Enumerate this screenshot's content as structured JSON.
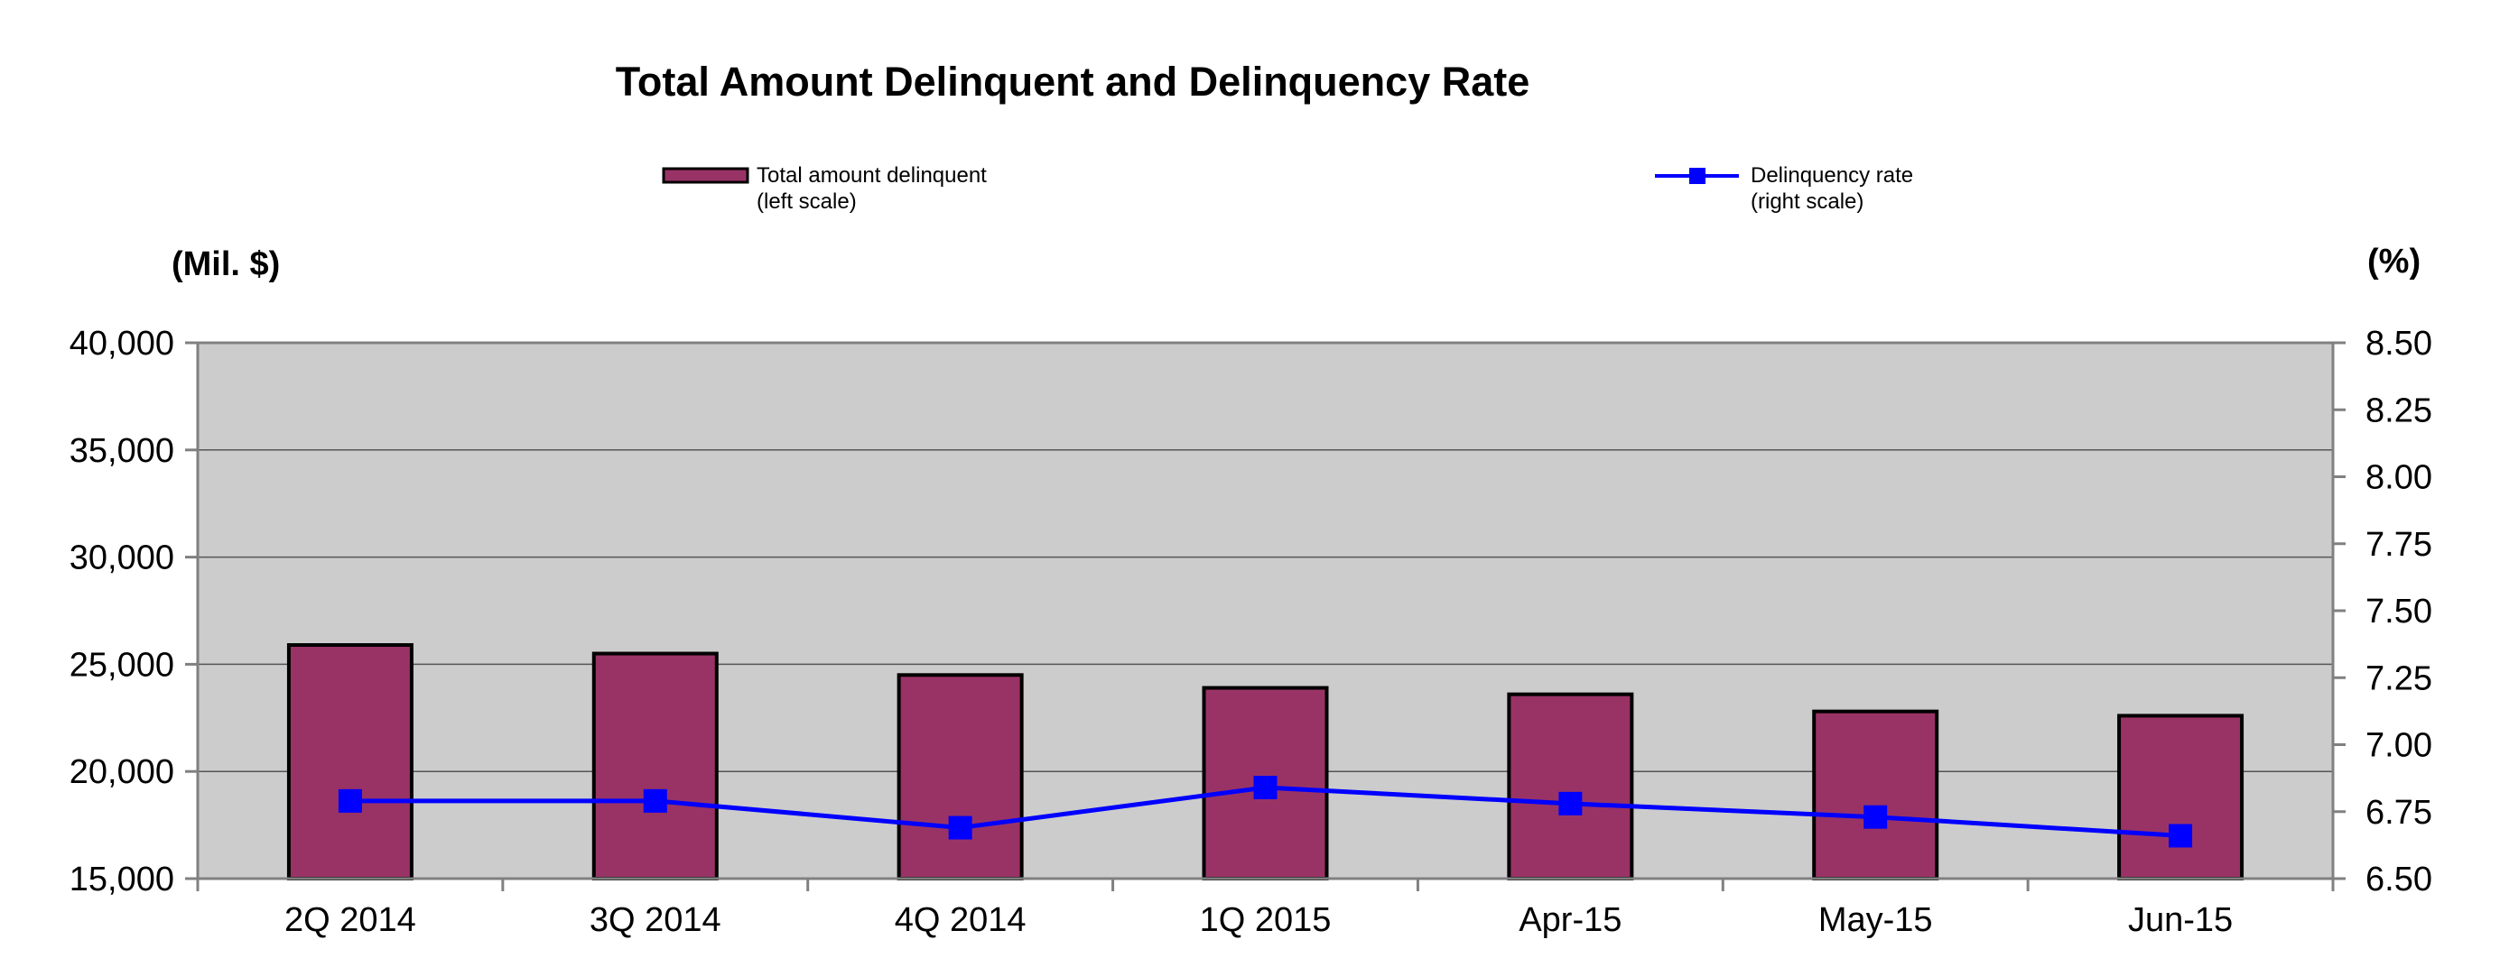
{
  "chart_data": {
    "type": "bar",
    "title": "Total Amount Delinquent and Delinquency Rate",
    "left_axis_unit": "(Mil. $)",
    "right_axis_unit": "(%)",
    "categories": [
      "2Q 2014",
      "3Q 2014",
      "4Q 2014",
      "1Q 2015",
      "Apr-15",
      "May-15",
      "Jun-15"
    ],
    "series": [
      {
        "name": "Total amount delinquent",
        "legend_lines": [
          "Total amount delinquent",
          "(left scale)"
        ],
        "type": "bar",
        "axis": "left",
        "color": "#993366",
        "values": [
          25900,
          25500,
          24500,
          23900,
          23600,
          22800,
          22600
        ]
      },
      {
        "name": "Delinquency rate",
        "legend_lines": [
          "Delinquency rate",
          "(right scale)"
        ],
        "type": "line",
        "axis": "right",
        "color": "#0000FF",
        "values": [
          6.79,
          6.79,
          6.69,
          6.84,
          6.78,
          6.73,
          6.66
        ]
      }
    ],
    "left_axis": {
      "ylim": [
        15000,
        40000
      ],
      "ticks": [
        15000,
        20000,
        25000,
        30000,
        35000,
        40000
      ],
      "tick_labels": [
        "15,000",
        "20,000",
        "25,000",
        "30,000",
        "35,000",
        "40,000"
      ]
    },
    "right_axis": {
      "ylim": [
        6.5,
        8.5
      ],
      "ticks": [
        6.5,
        6.75,
        7.0,
        7.25,
        7.5,
        7.75,
        8.0,
        8.25,
        8.5
      ],
      "tick_labels": [
        "6.50",
        "6.75",
        "7.00",
        "7.25",
        "7.50",
        "7.75",
        "8.00",
        "8.25",
        "8.50"
      ]
    },
    "grid": true,
    "plot_background": "#CCCCCC",
    "legend_position": "top"
  }
}
